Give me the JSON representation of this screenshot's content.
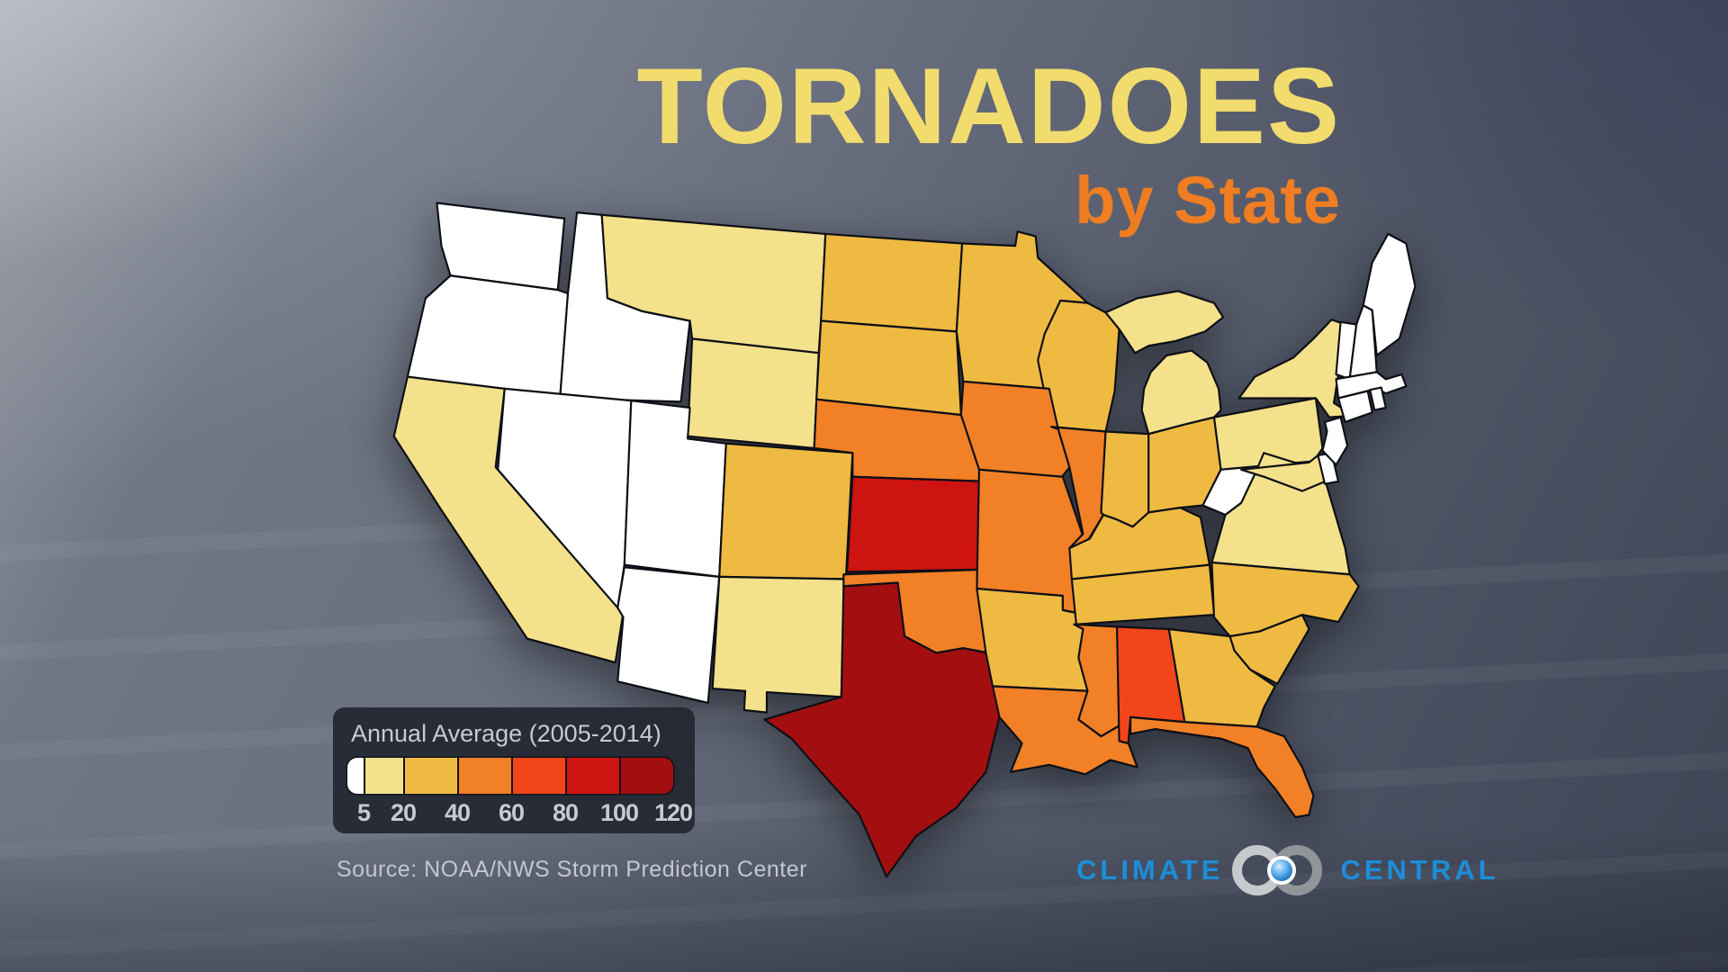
{
  "title": {
    "line1": "TORNADOES",
    "line2": "by State"
  },
  "legend": {
    "title": "Annual Average (2005-2014)",
    "tick_labels": [
      "5",
      "20",
      "40",
      "60",
      "80",
      "100",
      "120"
    ]
  },
  "source": "Source: NOAA/NWS Storm Prediction Center",
  "logo": {
    "left": "CLIMATE",
    "right": "CENTRAL"
  },
  "colors": {
    "title_yellow": "#F2DC6D",
    "title_orange": "#EF7D22",
    "logo_blue": "#1C8ED9",
    "legend_bg": "rgba(34,38,48,0.92)",
    "legend_text": "#C7CAD1"
  },
  "chart_data": {
    "type": "choropleth",
    "title": "Tornadoes by State",
    "metric_label": "Annual Average (2005-2014)",
    "source": "NOAA/NWS Storm Prediction Center",
    "legend_boundaries": [
      5,
      20,
      40,
      60,
      80,
      100,
      120
    ],
    "bands": [
      {
        "label": "<5",
        "color": "#FFFFFF"
      },
      {
        "label": "5-20",
        "color": "#F3E18C"
      },
      {
        "label": "20-40",
        "color": "#EFBA42"
      },
      {
        "label": "40-60",
        "color": "#F18026"
      },
      {
        "label": "60-80",
        "color": "#F2461A"
      },
      {
        "label": "80-100",
        "color": "#CD1410"
      },
      {
        "label": "100-120",
        "color": "#A30F10"
      }
    ],
    "states": [
      {
        "id": "WA",
        "name": "Washington",
        "band": 0
      },
      {
        "id": "OR",
        "name": "Oregon",
        "band": 0
      },
      {
        "id": "ID",
        "name": "Idaho",
        "band": 0
      },
      {
        "id": "NV",
        "name": "Nevada",
        "band": 0
      },
      {
        "id": "UT",
        "name": "Utah",
        "band": 0
      },
      {
        "id": "AZ",
        "name": "Arizona",
        "band": 0
      },
      {
        "id": "WV",
        "name": "West Virginia",
        "band": 0
      },
      {
        "id": "NJ",
        "name": "New Jersey",
        "band": 0
      },
      {
        "id": "DE",
        "name": "Delaware",
        "band": 0
      },
      {
        "id": "CT",
        "name": "Connecticut",
        "band": 0
      },
      {
        "id": "RI",
        "name": "Rhode Island",
        "band": 0
      },
      {
        "id": "MA",
        "name": "Massachusetts",
        "band": 0
      },
      {
        "id": "VT",
        "name": "Vermont",
        "band": 0
      },
      {
        "id": "NH",
        "name": "New Hampshire",
        "band": 0
      },
      {
        "id": "ME",
        "name": "Maine",
        "band": 0
      },
      {
        "id": "CA",
        "name": "California",
        "band": 1
      },
      {
        "id": "MT",
        "name": "Montana",
        "band": 1
      },
      {
        "id": "WY",
        "name": "Wyoming",
        "band": 1
      },
      {
        "id": "NM",
        "name": "New Mexico",
        "band": 1
      },
      {
        "id": "MI",
        "name": "Michigan",
        "band": 1
      },
      {
        "id": "NY",
        "name": "New York",
        "band": 1
      },
      {
        "id": "PA",
        "name": "Pennsylvania",
        "band": 1
      },
      {
        "id": "VA",
        "name": "Virginia",
        "band": 1
      },
      {
        "id": "MD",
        "name": "Maryland",
        "band": 1
      },
      {
        "id": "CO",
        "name": "Colorado",
        "band": 2
      },
      {
        "id": "ND",
        "name": "North Dakota",
        "band": 2
      },
      {
        "id": "SD",
        "name": "South Dakota",
        "band": 2
      },
      {
        "id": "MN",
        "name": "Minnesota",
        "band": 2
      },
      {
        "id": "WI",
        "name": "Wisconsin",
        "band": 2
      },
      {
        "id": "OH",
        "name": "Ohio",
        "band": 2
      },
      {
        "id": "IN",
        "name": "Indiana",
        "band": 2
      },
      {
        "id": "KY",
        "name": "Kentucky",
        "band": 2
      },
      {
        "id": "TN",
        "name": "Tennessee",
        "band": 2
      },
      {
        "id": "AR",
        "name": "Arkansas",
        "band": 2
      },
      {
        "id": "GA",
        "name": "Georgia",
        "band": 2
      },
      {
        "id": "NC",
        "name": "North Carolina",
        "band": 2
      },
      {
        "id": "SC",
        "name": "South Carolina",
        "band": 2
      },
      {
        "id": "NE",
        "name": "Nebraska",
        "band": 3
      },
      {
        "id": "IA",
        "name": "Iowa",
        "band": 3
      },
      {
        "id": "MO",
        "name": "Missouri",
        "band": 3
      },
      {
        "id": "IL",
        "name": "Illinois",
        "band": 3
      },
      {
        "id": "OK",
        "name": "Oklahoma",
        "band": 3
      },
      {
        "id": "LA",
        "name": "Louisiana",
        "band": 3
      },
      {
        "id": "MS",
        "name": "Mississippi",
        "band": 3
      },
      {
        "id": "FL",
        "name": "Florida",
        "band": 3
      },
      {
        "id": "AL",
        "name": "Alabama",
        "band": 4
      },
      {
        "id": "KS",
        "name": "Kansas",
        "band": 5
      },
      {
        "id": "TX",
        "name": "Texas",
        "band": 6
      }
    ]
  }
}
